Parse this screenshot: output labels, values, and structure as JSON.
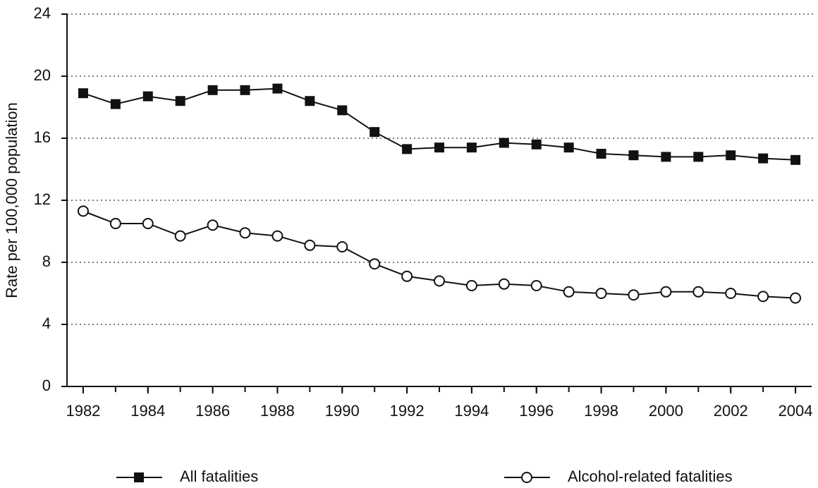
{
  "chart_data": {
    "type": "line",
    "y_label": "Rate per 100,000 population",
    "x": [
      1982,
      1983,
      1984,
      1985,
      1986,
      1987,
      1988,
      1989,
      1990,
      1991,
      1992,
      1993,
      1994,
      1995,
      1996,
      1997,
      1998,
      1999,
      2000,
      2001,
      2002,
      2003,
      2004
    ],
    "series": [
      {
        "name": "All fatalities",
        "color": "#111111",
        "marker": "square",
        "values": [
          18.9,
          18.2,
          18.7,
          18.4,
          19.1,
          19.1,
          19.2,
          18.4,
          17.8,
          16.4,
          15.3,
          15.4,
          15.4,
          15.7,
          15.6,
          15.4,
          15.0,
          14.9,
          14.8,
          14.8,
          14.9,
          14.7,
          14.6
        ]
      },
      {
        "name": "Alcohol-related fatalities",
        "color": "#111111",
        "marker": "circle",
        "values": [
          11.3,
          10.5,
          10.5,
          9.7,
          10.4,
          9.9,
          9.7,
          9.1,
          9.0,
          7.9,
          7.1,
          6.8,
          6.5,
          6.6,
          6.5,
          6.1,
          6.0,
          5.9,
          6.1,
          6.1,
          6.0,
          5.8,
          5.7
        ]
      }
    ],
    "xlim": [
      1981.5,
      2004.5
    ],
    "xticks": [
      1982,
      1984,
      1986,
      1988,
      1990,
      1992,
      1994,
      1996,
      1998,
      2000,
      2002,
      2004
    ],
    "ylim": [
      0,
      24
    ],
    "yticks": [
      0,
      4,
      8,
      12,
      16,
      20,
      24
    ],
    "grid": true,
    "legend": "bottom"
  }
}
